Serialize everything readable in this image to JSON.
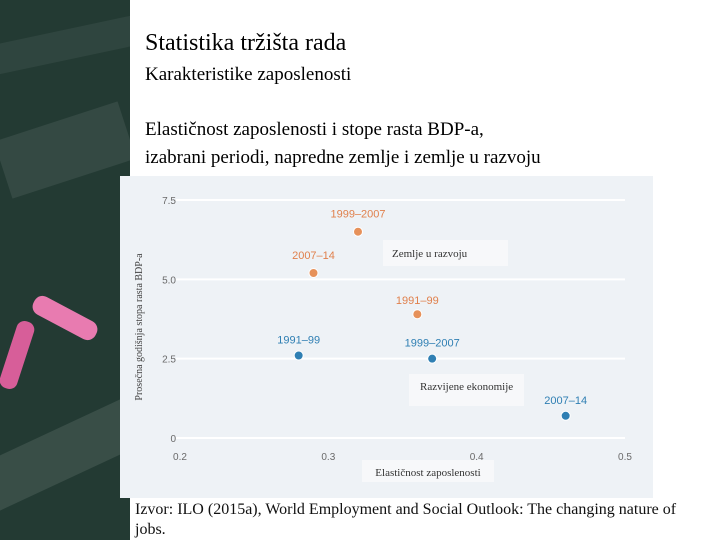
{
  "slide": {
    "title": "Statistika tržišta rada",
    "subtitle": "Karakteristike zaposlenosti",
    "description_line1": "Elastičnost zaposlenosti i stope rasta BDP-a,",
    "description_line2": "izabrani periodi, napredne zemlje i zemlje u razvoju",
    "source_line1": "Izvor: ILO (2015a), World Employment and Social Outlook: The changing nature of",
    "source_line2": "jobs."
  },
  "colors": {
    "developing": "#e6915a",
    "developing_label": "#e0804c",
    "advanced": "#2f7fb3",
    "advanced_label": "#2f7fb3",
    "grid": "#ffffff",
    "axis_text": "#6a6a6a",
    "chart_bg": "#eef2f6",
    "box_bg": "#f7f8fa"
  },
  "chart_data": {
    "type": "scatter",
    "xlabel": "Elastičnost zaposlenosti",
    "ylabel": "Prosečna godišnja stopa rasta BDP-a",
    "xlim": [
      0.2,
      0.5
    ],
    "ylim": [
      0,
      7.5
    ],
    "xticks": [
      "0.2",
      "0.3",
      "0.4",
      "0.5"
    ],
    "xtick_values": [
      0.2,
      0.3,
      0.4,
      0.5
    ],
    "yticks": [
      "0",
      "2.5",
      "5.0",
      "7.5"
    ],
    "ytick_values": [
      0,
      2.5,
      5.0,
      7.5
    ],
    "series": [
      {
        "name": "Zemlje u razvoju",
        "color_key": "developing",
        "points": [
          {
            "label": "1999–2007",
            "x": 0.32,
            "y": 6.5
          },
          {
            "label": "2007–14",
            "x": 0.29,
            "y": 5.2
          },
          {
            "label": "1991–99",
            "x": 0.36,
            "y": 3.9
          }
        ]
      },
      {
        "name": "Razvijene ekonomije",
        "color_key": "advanced",
        "points": [
          {
            "label": "1991–99",
            "x": 0.28,
            "y": 2.6
          },
          {
            "label": "1999–2007",
            "x": 0.37,
            "y": 2.5
          },
          {
            "label": "2007–14",
            "x": 0.46,
            "y": 0.7
          }
        ]
      }
    ]
  }
}
